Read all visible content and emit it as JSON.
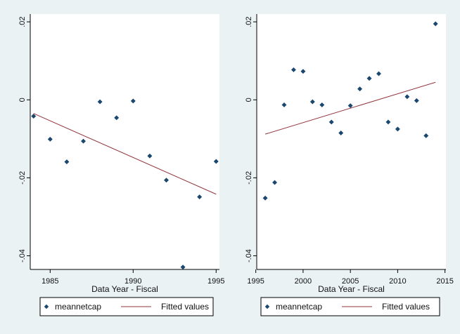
{
  "chart_data": [
    {
      "type": "scatter",
      "title": "",
      "xlabel": "Data Year - Fiscal",
      "ylabel": "",
      "xlim": [
        1983.8,
        1995.2
      ],
      "ylim": [
        -0.0435,
        0.022
      ],
      "xticks": [
        1985,
        1990,
        1995
      ],
      "xtick_labels": [
        "1985",
        "1990",
        "1995"
      ],
      "yticks": [
        0.02,
        0,
        -0.02,
        -0.04
      ],
      "ytick_labels": [
        ".02",
        "0",
        "-.02",
        "-.04"
      ],
      "grid": false,
      "legend_position": "bottom",
      "series": [
        {
          "name": "meannetcap",
          "kind": "scatter",
          "color": "#1a476f",
          "x": [
            1984,
            1985,
            1986,
            1987,
            1988,
            1989,
            1990,
            1991,
            1992,
            1993,
            1994,
            1995
          ],
          "y": [
            -0.0042,
            -0.0101,
            -0.0159,
            -0.0106,
            -0.0005,
            -0.0046,
            -0.0003,
            -0.0144,
            -0.0206,
            -0.0429,
            -0.0249,
            -0.0158
          ]
        },
        {
          "name": "Fitted values",
          "kind": "line",
          "color": "#90353b",
          "x": [
            1984,
            1995
          ],
          "y": [
            -0.0035,
            -0.0242
          ]
        }
      ]
    },
    {
      "type": "scatter",
      "title": "",
      "xlabel": "Data Year - Fiscal",
      "ylabel": "",
      "xlim": [
        1995.1,
        2015.1
      ],
      "ylim": [
        -0.0435,
        0.022
      ],
      "xticks": [
        1995,
        2000,
        2005,
        2010,
        2015
      ],
      "xtick_labels": [
        "1995",
        "2000",
        "2005",
        "2010",
        "2015"
      ],
      "yticks": [
        0.02,
        0,
        -0.02,
        -0.04
      ],
      "ytick_labels": [
        ".02",
        "0",
        "-.02",
        "-.04"
      ],
      "grid": false,
      "legend_position": "bottom",
      "series": [
        {
          "name": "meannetcap",
          "kind": "scatter",
          "color": "#1a476f",
          "x": [
            1996,
            1997,
            1998,
            1999,
            2000,
            2001,
            2002,
            2003,
            2004,
            2005,
            2006,
            2007,
            2008,
            2009,
            2010,
            2011,
            2012,
            2013,
            2014
          ],
          "y": [
            -0.0252,
            -0.0212,
            -0.0013,
            0.0077,
            0.0073,
            -0.0005,
            -0.0013,
            -0.0057,
            -0.0085,
            -0.0015,
            0.0028,
            0.0055,
            0.0067,
            -0.0057,
            -0.0075,
            0.0008,
            -0.0002,
            -0.0092,
            0.0195
          ]
        },
        {
          "name": "Fitted values",
          "kind": "line",
          "color": "#90353b",
          "x": [
            1996,
            2014
          ],
          "y": [
            -0.0088,
            0.0045
          ]
        }
      ]
    }
  ]
}
